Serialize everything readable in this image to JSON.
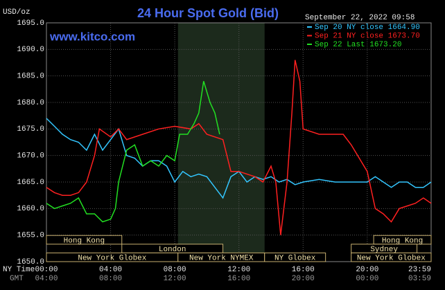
{
  "chart_data": {
    "type": "line",
    "title": "24 Hour Spot Gold (Bid)",
    "site": "www.kitco.com",
    "unit_label": "USD/oz",
    "timestamp": "September 22, 2022 09:58",
    "x_row_label": "NY Time",
    "gmt_row_label": "GMT",
    "xlim": [
      0,
      23.983
    ],
    "xticks": [
      {
        "value": 0,
        "label": "00:00"
      },
      {
        "value": 4,
        "label": "04:00"
      },
      {
        "value": 8,
        "label": "08:00"
      },
      {
        "value": 12,
        "label": "12:00"
      },
      {
        "value": 16,
        "label": "16:00"
      },
      {
        "value": 20,
        "label": "20:00"
      },
      {
        "value": 23.983,
        "label": "23:59"
      }
    ],
    "gmt_labels": [
      "04:00",
      "08:00",
      "12:00",
      "16:00",
      "20:00",
      "00:00",
      "03:59"
    ],
    "ylim": [
      1650,
      1695
    ],
    "yticks": [
      {
        "value": 1650,
        "label": "1650.0"
      },
      {
        "value": 1655,
        "label": "1655.0"
      },
      {
        "value": 1660,
        "label": "1660.0"
      },
      {
        "value": 1665,
        "label": "1665.0"
      },
      {
        "value": 1670,
        "label": "1670.0"
      },
      {
        "value": 1675,
        "label": "1675.0"
      },
      {
        "value": 1680,
        "label": "1680.0"
      },
      {
        "value": 1685,
        "label": "1685.0"
      },
      {
        "value": 1690,
        "label": "1690.0"
      },
      {
        "value": 1695,
        "label": "1695.0"
      }
    ],
    "grid": true,
    "sessions": [
      {
        "name": "Hong Kong",
        "start": 0,
        "end": 4.7
      },
      {
        "name": "Hong Kong",
        "start": 20.4,
        "end": 23.983
      },
      {
        "name": "London",
        "start": 4.7,
        "end": 11.0
      },
      {
        "name": "Sydney",
        "start": 19.0,
        "end": 23.1
      },
      {
        "name": "New York Globex",
        "start": 0,
        "end": 8.2
      },
      {
        "name": "New York NYMEX",
        "start": 8.2,
        "end": 13.6
      },
      {
        "name": "NY Globex",
        "start": 13.6,
        "end": 17.4
      },
      {
        "name": "New York Globex",
        "start": 19.0,
        "end": 23.983
      }
    ],
    "series": [
      {
        "name": "Sep 20 NY close 1664.90",
        "color": "#33c6ff",
        "x": [
          0,
          0.5,
          1,
          1.5,
          2,
          2.5,
          3,
          3.5,
          4,
          4.5,
          5,
          5.5,
          6,
          6.5,
          7,
          7.5,
          8,
          8.5,
          9,
          9.5,
          10,
          10.5,
          11,
          11.5,
          12,
          12.5,
          13,
          13.5,
          14,
          14.5,
          15,
          15.5,
          16,
          17,
          18,
          19,
          20,
          20.5,
          21,
          21.5,
          22,
          22.5,
          23,
          23.5,
          23.983
        ],
        "values": [
          1677,
          1675.5,
          1674,
          1673,
          1672.5,
          1671,
          1674,
          1671,
          1673,
          1675,
          1670,
          1669.5,
          1668,
          1669,
          1669,
          1668,
          1665,
          1667,
          1666,
          1666.5,
          1666,
          1664,
          1662,
          1666,
          1667,
          1665,
          1666,
          1665.5,
          1666,
          1665,
          1665.5,
          1664.5,
          1665,
          1665.5,
          1665,
          1665,
          1665,
          1666,
          1665,
          1664,
          1665,
          1665,
          1664,
          1664,
          1665
        ]
      },
      {
        "name": "Sep 21 NY close 1673.70",
        "color": "#ff2020",
        "x": [
          0,
          0.5,
          1,
          1.5,
          2,
          2.5,
          3,
          3.3,
          4,
          4.5,
          5,
          6,
          7,
          8,
          9,
          9.5,
          10,
          11,
          11.5,
          12,
          13,
          13.5,
          14,
          14.3,
          14.6,
          15,
          15.3,
          15.5,
          15.8,
          16,
          17,
          18,
          18.5,
          19,
          20,
          20.5,
          21,
          21.5,
          22,
          22.5,
          23,
          23.5,
          23.983
        ],
        "values": [
          1664,
          1663,
          1662.5,
          1662.5,
          1663,
          1665,
          1670,
          1675,
          1673.5,
          1675,
          1673,
          1674,
          1675,
          1675.5,
          1675,
          1676,
          1674,
          1673,
          1667,
          1667,
          1666,
          1665,
          1668,
          1665,
          1655,
          1665,
          1678,
          1688,
          1684,
          1675,
          1674,
          1674,
          1674,
          1672,
          1667,
          1660,
          1659,
          1657.5,
          1660,
          1660.5,
          1661,
          1662,
          1661
        ]
      },
      {
        "name": "Sep 22 Last 1673.20",
        "color": "#22e022",
        "x": [
          0,
          0.5,
          1,
          1.5,
          2,
          2.5,
          3,
          3.5,
          4,
          4.3,
          4.5,
          5,
          5.5,
          6,
          6.5,
          7,
          7.5,
          8,
          8.3,
          8.8,
          9.2,
          9.5,
          9.8,
          10.2,
          10.5,
          10.8
        ],
        "values": [
          1661,
          1660,
          1660.5,
          1661,
          1662,
          1659,
          1659,
          1657.5,
          1658,
          1660,
          1665,
          1671,
          1672,
          1668,
          1669,
          1668,
          1670,
          1669,
          1674,
          1674,
          1676,
          1678,
          1684,
          1680,
          1678,
          1674
        ]
      }
    ]
  }
}
